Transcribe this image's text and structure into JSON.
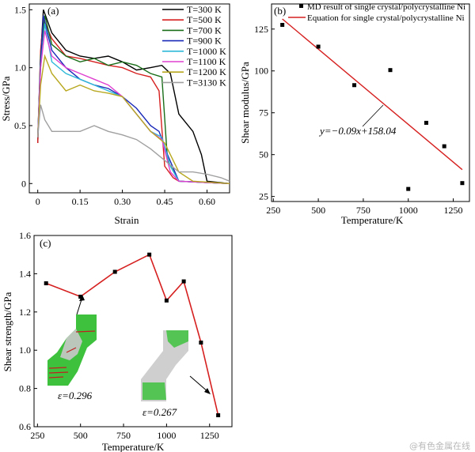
{
  "watermark": "@有色金属在线",
  "chart_data": [
    {
      "panel": "(a)",
      "type": "line",
      "xlabel": "Strain",
      "ylabel": "Stress/GPa",
      "xlim": [
        -0.03,
        0.68
      ],
      "ylim": [
        -0.08,
        1.55
      ],
      "xticks": [
        0,
        0.15,
        0.3,
        0.45,
        0.6
      ],
      "xtick_labels": [
        "0",
        "0.15",
        "0.30",
        "0.45",
        "0.60"
      ],
      "yticks": [
        0,
        0.5,
        1.0,
        1.5
      ],
      "ytick_labels": [
        "0",
        "0.5",
        "1.0",
        "1.5"
      ],
      "legend_position": "top-right",
      "series": [
        {
          "name": "T=300 K",
          "color": "#000000",
          "points": [
            [
              0,
              0.35
            ],
            [
              0.01,
              1.1
            ],
            [
              0.02,
              1.5
            ],
            [
              0.05,
              1.3
            ],
            [
              0.1,
              1.15
            ],
            [
              0.15,
              1.1
            ],
            [
              0.2,
              1.08
            ],
            [
              0.25,
              1.1
            ],
            [
              0.3,
              1.05
            ],
            [
              0.35,
              0.98
            ],
            [
              0.4,
              1.0
            ],
            [
              0.44,
              1.02
            ],
            [
              0.47,
              0.95
            ],
            [
              0.5,
              0.6
            ],
            [
              0.55,
              0.45
            ],
            [
              0.58,
              0.25
            ],
            [
              0.6,
              0.02
            ],
            [
              0.68,
              0
            ]
          ]
        },
        {
          "name": "T=500 K",
          "color": "#d62020",
          "points": [
            [
              0,
              0.35
            ],
            [
              0.01,
              1.15
            ],
            [
              0.02,
              1.42
            ],
            [
              0.05,
              1.25
            ],
            [
              0.1,
              1.1
            ],
            [
              0.15,
              1.08
            ],
            [
              0.2,
              1.05
            ],
            [
              0.25,
              1.02
            ],
            [
              0.3,
              1.0
            ],
            [
              0.35,
              0.95
            ],
            [
              0.4,
              0.92
            ],
            [
              0.43,
              0.8
            ],
            [
              0.45,
              0.15
            ],
            [
              0.48,
              0.05
            ],
            [
              0.5,
              0.02
            ],
            [
              0.68,
              0
            ]
          ]
        },
        {
          "name": "T=700 K",
          "color": "#1a6e1a",
          "points": [
            [
              0,
              0.4
            ],
            [
              0.01,
              1.1
            ],
            [
              0.025,
              1.45
            ],
            [
              0.05,
              1.2
            ],
            [
              0.1,
              1.1
            ],
            [
              0.15,
              1.05
            ],
            [
              0.2,
              1.08
            ],
            [
              0.25,
              1.02
            ],
            [
              0.3,
              1.05
            ],
            [
              0.35,
              1.02
            ],
            [
              0.4,
              0.95
            ],
            [
              0.44,
              0.92
            ],
            [
              0.46,
              0.2
            ],
            [
              0.5,
              0.02
            ],
            [
              0.68,
              0
            ]
          ]
        },
        {
          "name": "T=900 K",
          "color": "#1a2ab8",
          "points": [
            [
              0,
              0.4
            ],
            [
              0.01,
              1.05
            ],
            [
              0.02,
              1.45
            ],
            [
              0.05,
              1.15
            ],
            [
              0.1,
              1.0
            ],
            [
              0.15,
              0.9
            ],
            [
              0.2,
              0.85
            ],
            [
              0.25,
              0.82
            ],
            [
              0.3,
              0.75
            ],
            [
              0.35,
              0.65
            ],
            [
              0.4,
              0.5
            ],
            [
              0.43,
              0.45
            ],
            [
              0.46,
              0.25
            ],
            [
              0.5,
              0.02
            ],
            [
              0.68,
              0
            ]
          ]
        },
        {
          "name": "T=1000 K",
          "color": "#2fb9d9",
          "points": [
            [
              0,
              0.4
            ],
            [
              0.01,
              1.0
            ],
            [
              0.025,
              1.38
            ],
            [
              0.05,
              1.05
            ],
            [
              0.1,
              0.95
            ],
            [
              0.15,
              0.9
            ],
            [
              0.2,
              0.85
            ],
            [
              0.25,
              0.8
            ],
            [
              0.3,
              0.75
            ],
            [
              0.35,
              0.6
            ],
            [
              0.4,
              0.45
            ],
            [
              0.44,
              0.4
            ],
            [
              0.47,
              0.15
            ],
            [
              0.5,
              0.02
            ],
            [
              0.68,
              0
            ]
          ]
        },
        {
          "name": "T=1100 K",
          "color": "#e040d0",
          "points": [
            [
              0,
              0.4
            ],
            [
              0.01,
              1.0
            ],
            [
              0.025,
              1.32
            ],
            [
              0.05,
              1.1
            ],
            [
              0.1,
              1.0
            ],
            [
              0.15,
              0.95
            ],
            [
              0.2,
              0.9
            ],
            [
              0.25,
              0.85
            ],
            [
              0.3,
              0.75
            ],
            [
              0.35,
              0.6
            ],
            [
              0.4,
              0.45
            ],
            [
              0.44,
              0.38
            ],
            [
              0.47,
              0.1
            ],
            [
              0.5,
              0.02
            ],
            [
              0.68,
              0
            ]
          ]
        },
        {
          "name": "T=1200 K",
          "color": "#b8a820",
          "points": [
            [
              0,
              0.4
            ],
            [
              0.01,
              0.85
            ],
            [
              0.025,
              1.1
            ],
            [
              0.05,
              0.95
            ],
            [
              0.1,
              0.8
            ],
            [
              0.15,
              0.85
            ],
            [
              0.2,
              0.8
            ],
            [
              0.25,
              0.78
            ],
            [
              0.3,
              0.75
            ],
            [
              0.35,
              0.6
            ],
            [
              0.4,
              0.45
            ],
            [
              0.45,
              0.35
            ],
            [
              0.5,
              0.1
            ],
            [
              0.55,
              0.02
            ],
            [
              0.68,
              0
            ]
          ]
        },
        {
          "name": "T=3130 K",
          "color": "#a0a0a0",
          "points": [
            [
              0,
              0.4
            ],
            [
              0.01,
              0.68
            ],
            [
              0.025,
              0.55
            ],
            [
              0.05,
              0.45
            ],
            [
              0.1,
              0.45
            ],
            [
              0.15,
              0.45
            ],
            [
              0.2,
              0.5
            ],
            [
              0.25,
              0.45
            ],
            [
              0.3,
              0.42
            ],
            [
              0.35,
              0.38
            ],
            [
              0.4,
              0.3
            ],
            [
              0.45,
              0.2
            ],
            [
              0.5,
              0.1
            ],
            [
              0.55,
              0.1
            ],
            [
              0.6,
              0.08
            ],
            [
              0.65,
              0.05
            ],
            [
              0.68,
              0.02
            ]
          ]
        }
      ]
    },
    {
      "panel": "(b)",
      "type": "scatter",
      "xlabel": "Temperature/K",
      "ylabel": "Shear modulus/GPa",
      "xlim": [
        240,
        1340
      ],
      "ylim": [
        22,
        140
      ],
      "xticks": [
        250,
        500,
        750,
        1000,
        1250
      ],
      "yticks": [
        25,
        50,
        75,
        100,
        125
      ],
      "legend_position": "top",
      "series": [
        {
          "name": "MD result of single crystal/polycrystalline Ni",
          "marker": "square",
          "color": "#000000",
          "x": [
            300,
            500,
            700,
            900,
            1000,
            1100,
            1200,
            1300
          ],
          "y": [
            127.5,
            114.5,
            91.5,
            100.5,
            29.5,
            69,
            55,
            33
          ]
        },
        {
          "name": "Equation for single crystal/polycrystalline Ni",
          "type": "line",
          "color": "#d62020",
          "x": [
            300,
            1300
          ],
          "y": [
            131.04,
            41.04
          ]
        }
      ],
      "annotation": "y=−0.09x+158.04"
    },
    {
      "panel": "(c)",
      "type": "line",
      "xlabel": "Temperature/K",
      "ylabel": "Shear strength/GPa",
      "xlim": [
        230,
        1380
      ],
      "ylim": [
        0.6,
        1.6
      ],
      "xticks": [
        250,
        500,
        750,
        1000,
        1250
      ],
      "yticks": [
        0.6,
        0.8,
        1.0,
        1.2,
        1.4,
        1.6
      ],
      "ytick_labels": [
        "0.6",
        "0.8",
        "1.0",
        "1.2",
        "1.4",
        "1.6"
      ],
      "series": [
        {
          "name": "",
          "color": "#d62020",
          "marker": "square",
          "x": [
            300,
            500,
            700,
            900,
            1000,
            1100,
            1200,
            1300
          ],
          "y": [
            1.35,
            1.28,
            1.41,
            1.5,
            1.26,
            1.36,
            1.04,
            0.66
          ]
        }
      ],
      "annotations": [
        "ε=0.296",
        "ε=0.267"
      ]
    }
  ]
}
